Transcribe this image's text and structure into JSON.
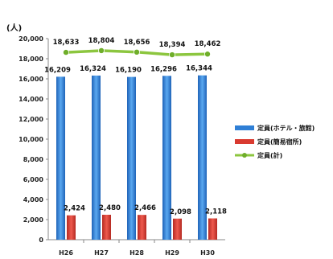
{
  "chart_data": {
    "type": "bar",
    "title": "",
    "unit_label": "(人)",
    "categories": [
      "H26",
      "H27",
      "H28",
      "H29",
      "H30"
    ],
    "ylim": [
      0,
      20000
    ],
    "yticks": [
      "0",
      "2,000",
      "4,000",
      "6,000",
      "8,000",
      "10,000",
      "12,000",
      "14,000",
      "16,000",
      "18,000",
      "20,000"
    ],
    "grid": false,
    "legend_position": "right",
    "series": [
      {
        "name": "定員(ホテル・旅館)",
        "kind": "bar",
        "color": "#2f7fd6",
        "values": [
          16209,
          16324,
          16190,
          16296,
          16344
        ],
        "labels": [
          "16,209",
          "16,324",
          "16,190",
          "16,296",
          "16,344"
        ]
      },
      {
        "name": "定員(簡易宿所)",
        "kind": "bar",
        "color": "#d93a30",
        "values": [
          2424,
          2480,
          2466,
          2098,
          2118
        ],
        "labels": [
          "2,424",
          "2,480",
          "2,466",
          "2,098",
          "2,118"
        ]
      },
      {
        "name": "定員(計)",
        "kind": "line",
        "color": "#8cc63f",
        "values": [
          18633,
          18804,
          18656,
          18394,
          18462
        ],
        "labels": [
          "18,633",
          "18,804",
          "18,656",
          "18,394",
          "18,462"
        ]
      }
    ]
  }
}
